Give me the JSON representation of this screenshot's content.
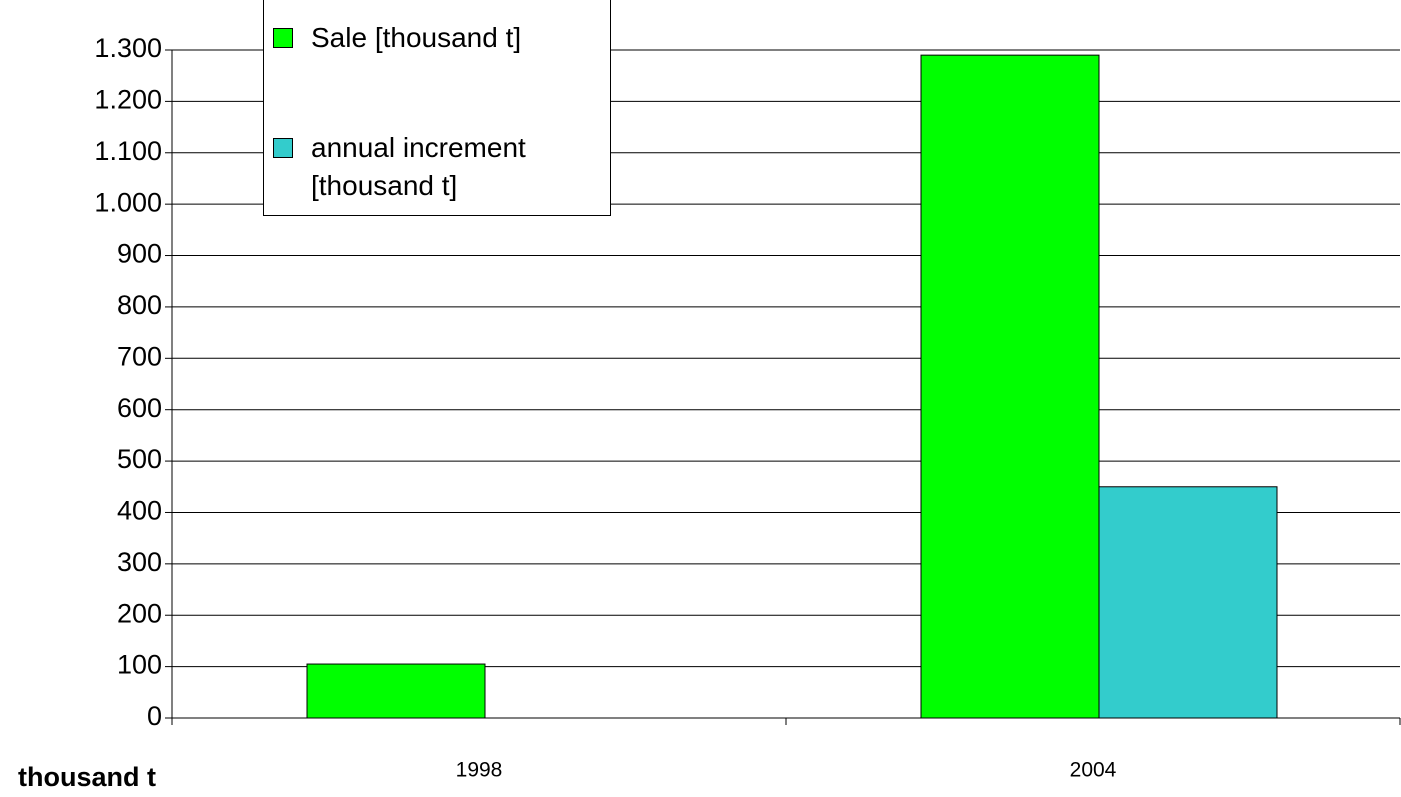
{
  "chart_data": {
    "type": "bar",
    "y_label": "thousand t",
    "categories": [
      "1998",
      "2004"
    ],
    "series": [
      {
        "name": "Sale [thousand t]",
        "color": "#00ff00",
        "values": [
          105,
          1290
        ]
      },
      {
        "name": "annual increment [thousand t]",
        "color": "#33cccc",
        "values": [
          null,
          450
        ]
      }
    ],
    "ylim": [
      0,
      1300
    ],
    "yticks": [
      0,
      100,
      200,
      300,
      400,
      500,
      600,
      700,
      800,
      900,
      {
        "value": 1000,
        "label": "1.000"
      },
      {
        "value": 1100,
        "label": "1.100"
      },
      {
        "value": 1200,
        "label": "1.200"
      },
      {
        "value": 1300,
        "label": "1.300"
      }
    ],
    "grid": true,
    "legend": "upper left"
  }
}
